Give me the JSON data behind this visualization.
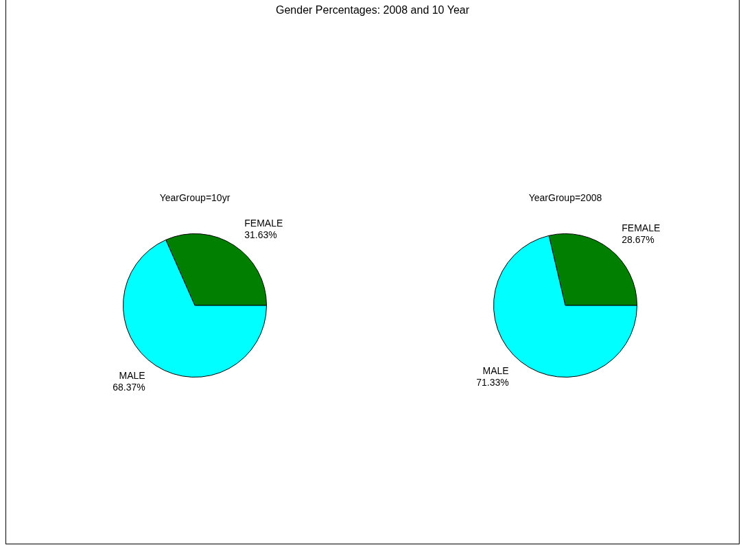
{
  "chart_data": [
    {
      "type": "pie",
      "title": "YearGroup=10yr",
      "annotations": [
        "Gender Percentages: 2008 and 10 Year"
      ],
      "categories": [
        "FEMALE",
        "MALE"
      ],
      "values": [
        31.63,
        68.37
      ],
      "value_labels": [
        "31.63%",
        "68.37%"
      ],
      "colors": [
        "#007f00",
        "#00ffff"
      ]
    },
    {
      "type": "pie",
      "title": "YearGroup=2008",
      "categories": [
        "FEMALE",
        "MALE"
      ],
      "values": [
        28.67,
        71.33
      ],
      "value_labels": [
        "28.67%",
        "71.33%"
      ],
      "colors": [
        "#007f00",
        "#00ffff"
      ]
    }
  ]
}
